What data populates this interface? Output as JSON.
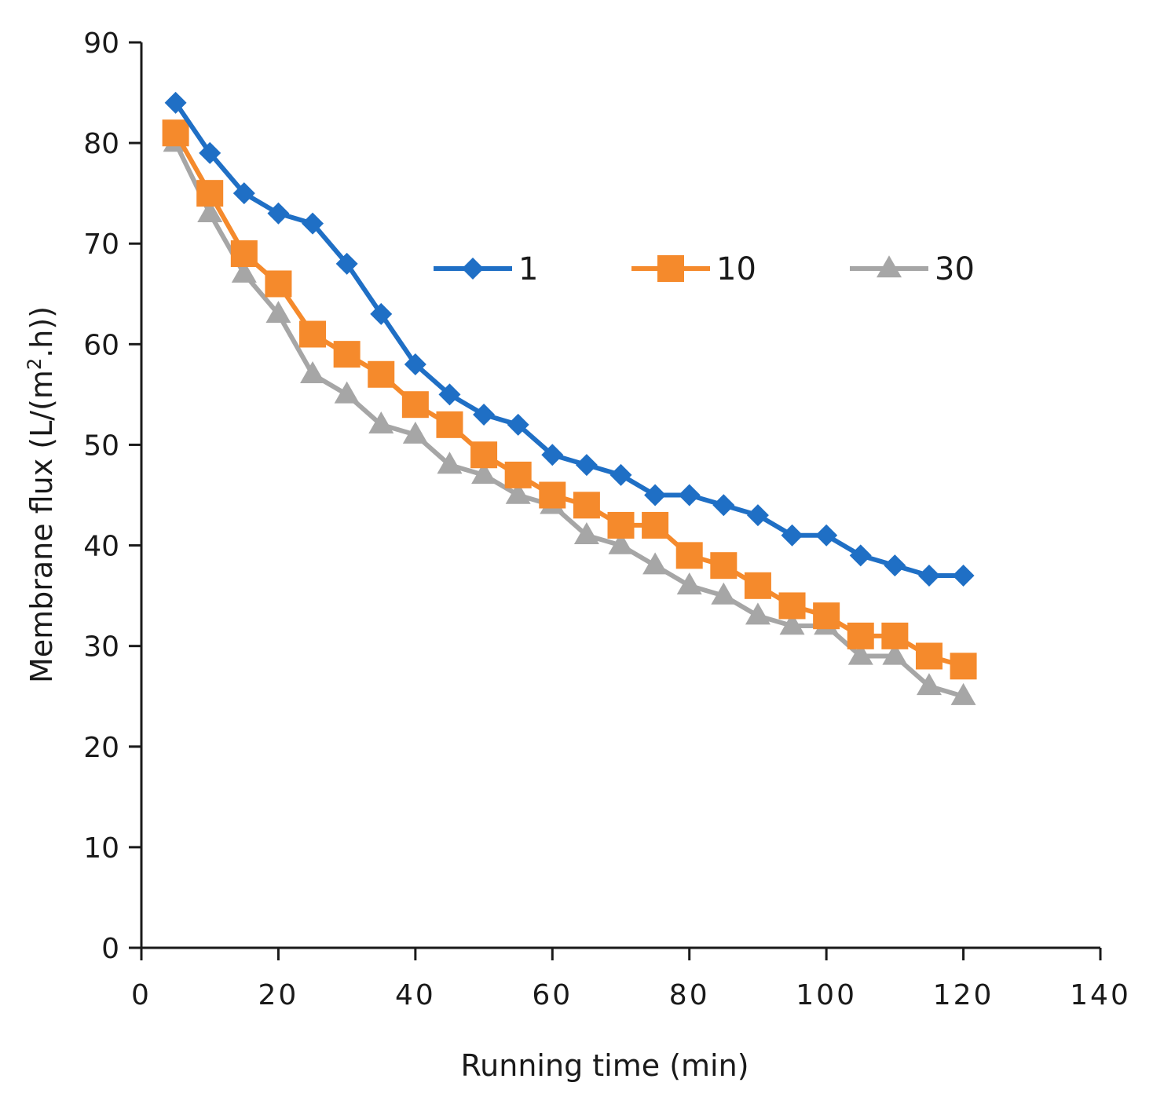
{
  "chart_data": {
    "type": "line",
    "title": "",
    "xlabel": "Running time (min)",
    "ylabel": {
      "prefix": "Membrane flux (L/(m",
      "sup": "2",
      "suffix": ".h))"
    },
    "xlim": [
      0,
      140
    ],
    "ylim": [
      0,
      90
    ],
    "xticks": [
      0,
      20,
      40,
      60,
      80,
      100,
      120,
      140
    ],
    "yticks": [
      0,
      10,
      20,
      30,
      40,
      50,
      60,
      70,
      80,
      90
    ],
    "grid": false,
    "legend_position": "top-center",
    "x": [
      5,
      10,
      15,
      20,
      25,
      30,
      35,
      40,
      45,
      50,
      55,
      60,
      65,
      70,
      75,
      80,
      85,
      90,
      95,
      100,
      105,
      110,
      115,
      120
    ],
    "series": [
      {
        "name": "1",
        "marker": "diamond",
        "color": "#1f6fc5",
        "values": [
          84,
          79,
          75,
          73,
          72,
          68,
          63,
          58,
          55,
          53,
          52,
          49,
          48,
          47,
          45,
          45,
          44,
          43,
          41,
          41,
          39,
          38,
          37,
          37
        ]
      },
      {
        "name": "10",
        "marker": "square",
        "color": "#f58a2c",
        "values": [
          81,
          75,
          69,
          66,
          61,
          59,
          57,
          54,
          52,
          49,
          47,
          45,
          44,
          42,
          42,
          39,
          38,
          36,
          34,
          33,
          31,
          31,
          29,
          28
        ]
      },
      {
        "name": "30",
        "marker": "triangle",
        "color": "#a6a6a6",
        "values": [
          80,
          73,
          67,
          63,
          57,
          55,
          52,
          51,
          48,
          47,
          45,
          44,
          41,
          40,
          38,
          36,
          35,
          33,
          32,
          32,
          29,
          29,
          26,
          25
        ]
      }
    ]
  }
}
